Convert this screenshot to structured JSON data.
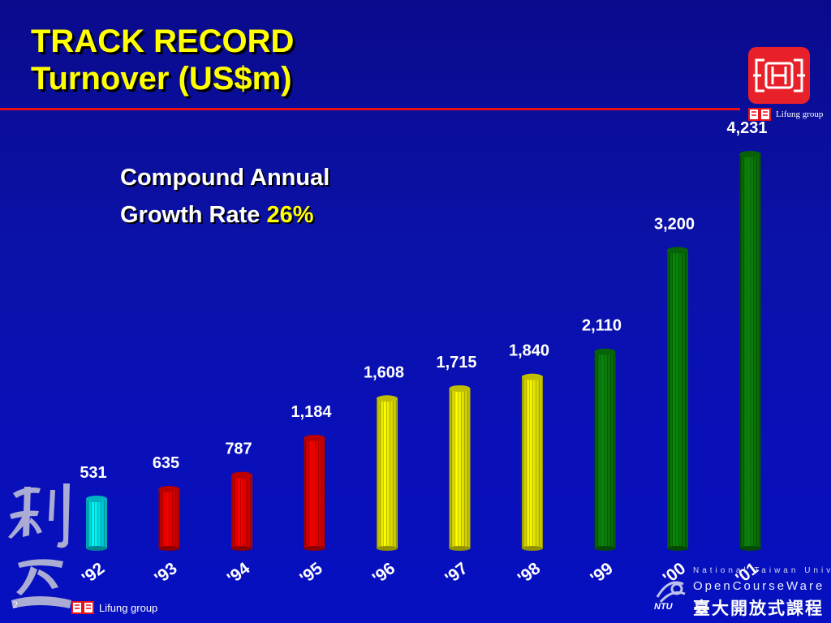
{
  "slide": {
    "title_line1": "TRACK RECORD",
    "title_line2": "Turnover (US$m)",
    "page_number": "2"
  },
  "annotation": {
    "line1": "Compound Annual",
    "line2_prefix": "Growth Rate ",
    "rate": "26%"
  },
  "branding": {
    "logo_caption": "Lifung group",
    "footer_caption": "Lifung group",
    "ntu_line1": "National Taiwan University",
    "ntu_line2": "OpenCourseWare",
    "ntu_line3": "臺大開放式課程",
    "ntu_abbr": "NTU"
  },
  "colors": {
    "background": "#0a10b0",
    "title": "#ffff00",
    "rule": "#e8101a",
    "bar_cyan": "#00e0f0",
    "bar_red": "#e80000",
    "bar_yellow": "#f0f000",
    "bar_green": "#0a7a0a",
    "label": "#ffffff"
  },
  "chart_data": {
    "type": "bar",
    "categories": [
      "'92",
      "'93",
      "'94",
      "'95",
      "'96",
      "'97",
      "'98",
      "'99",
      "'00",
      "'01"
    ],
    "values": [
      531,
      635,
      787,
      1184,
      1608,
      1715,
      1840,
      2110,
      3200,
      4231
    ],
    "value_labels": [
      "531",
      "635",
      "787",
      "1,184",
      "1,608",
      "1,715",
      "1,840",
      "2,110",
      "3,200",
      "4,231"
    ],
    "bar_colors": [
      "#00e0f0",
      "#e80000",
      "#e80000",
      "#e80000",
      "#f0f000",
      "#f0f000",
      "#f0f000",
      "#0a7a0a",
      "#0a7a0a",
      "#0a7a0a"
    ],
    "title": "Turnover (US$m)",
    "xlabel": "",
    "ylabel": "",
    "ylim": [
      0,
      4300
    ],
    "grid": false,
    "legend": "none",
    "compound_annual_growth_rate": "26%"
  }
}
